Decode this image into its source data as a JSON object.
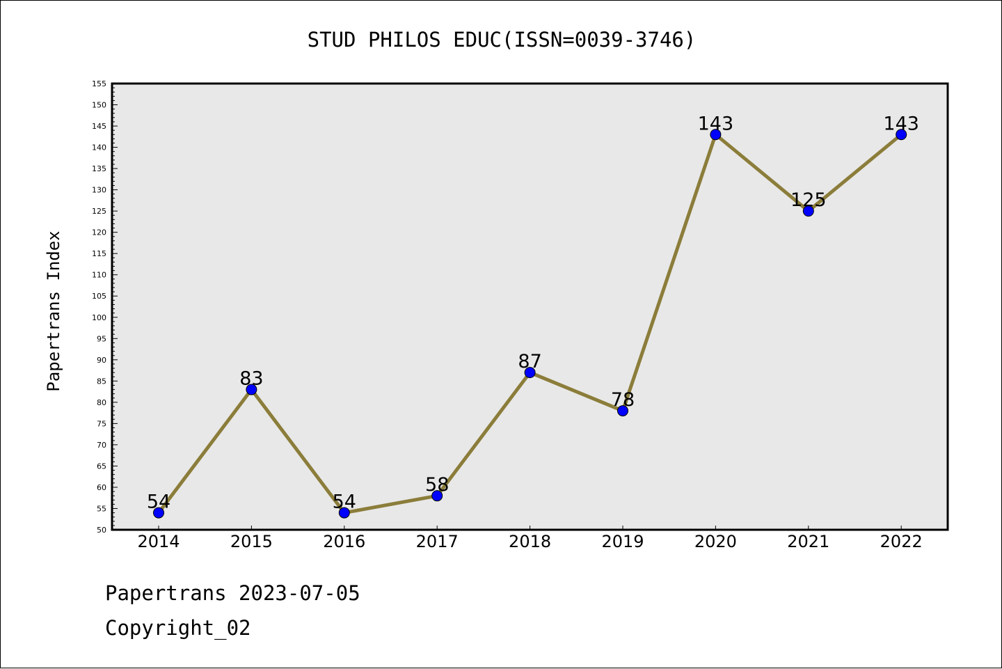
{
  "chart_data": {
    "type": "line",
    "title": "STUD PHILOS EDUC(ISSN=0039-3746)",
    "xlabel": "",
    "ylabel": "Papertrans Index",
    "x": [
      "2014",
      "2015",
      "2016",
      "2017",
      "2018",
      "2019",
      "2020",
      "2021",
      "2022"
    ],
    "series": [
      {
        "values": [
          54,
          83,
          54,
          58,
          87,
          78,
          143,
          125,
          143
        ]
      }
    ],
    "ylim": [
      50,
      155
    ],
    "ytick_step": 5,
    "grid": false,
    "legend": "none",
    "colors": {
      "line": "#8b7d3a",
      "marker": "#0000ff",
      "plot_background": "#e8e8e8"
    }
  },
  "footer": {
    "line1": "Papertrans 2023-07-05",
    "line2": "Copyright_02"
  }
}
